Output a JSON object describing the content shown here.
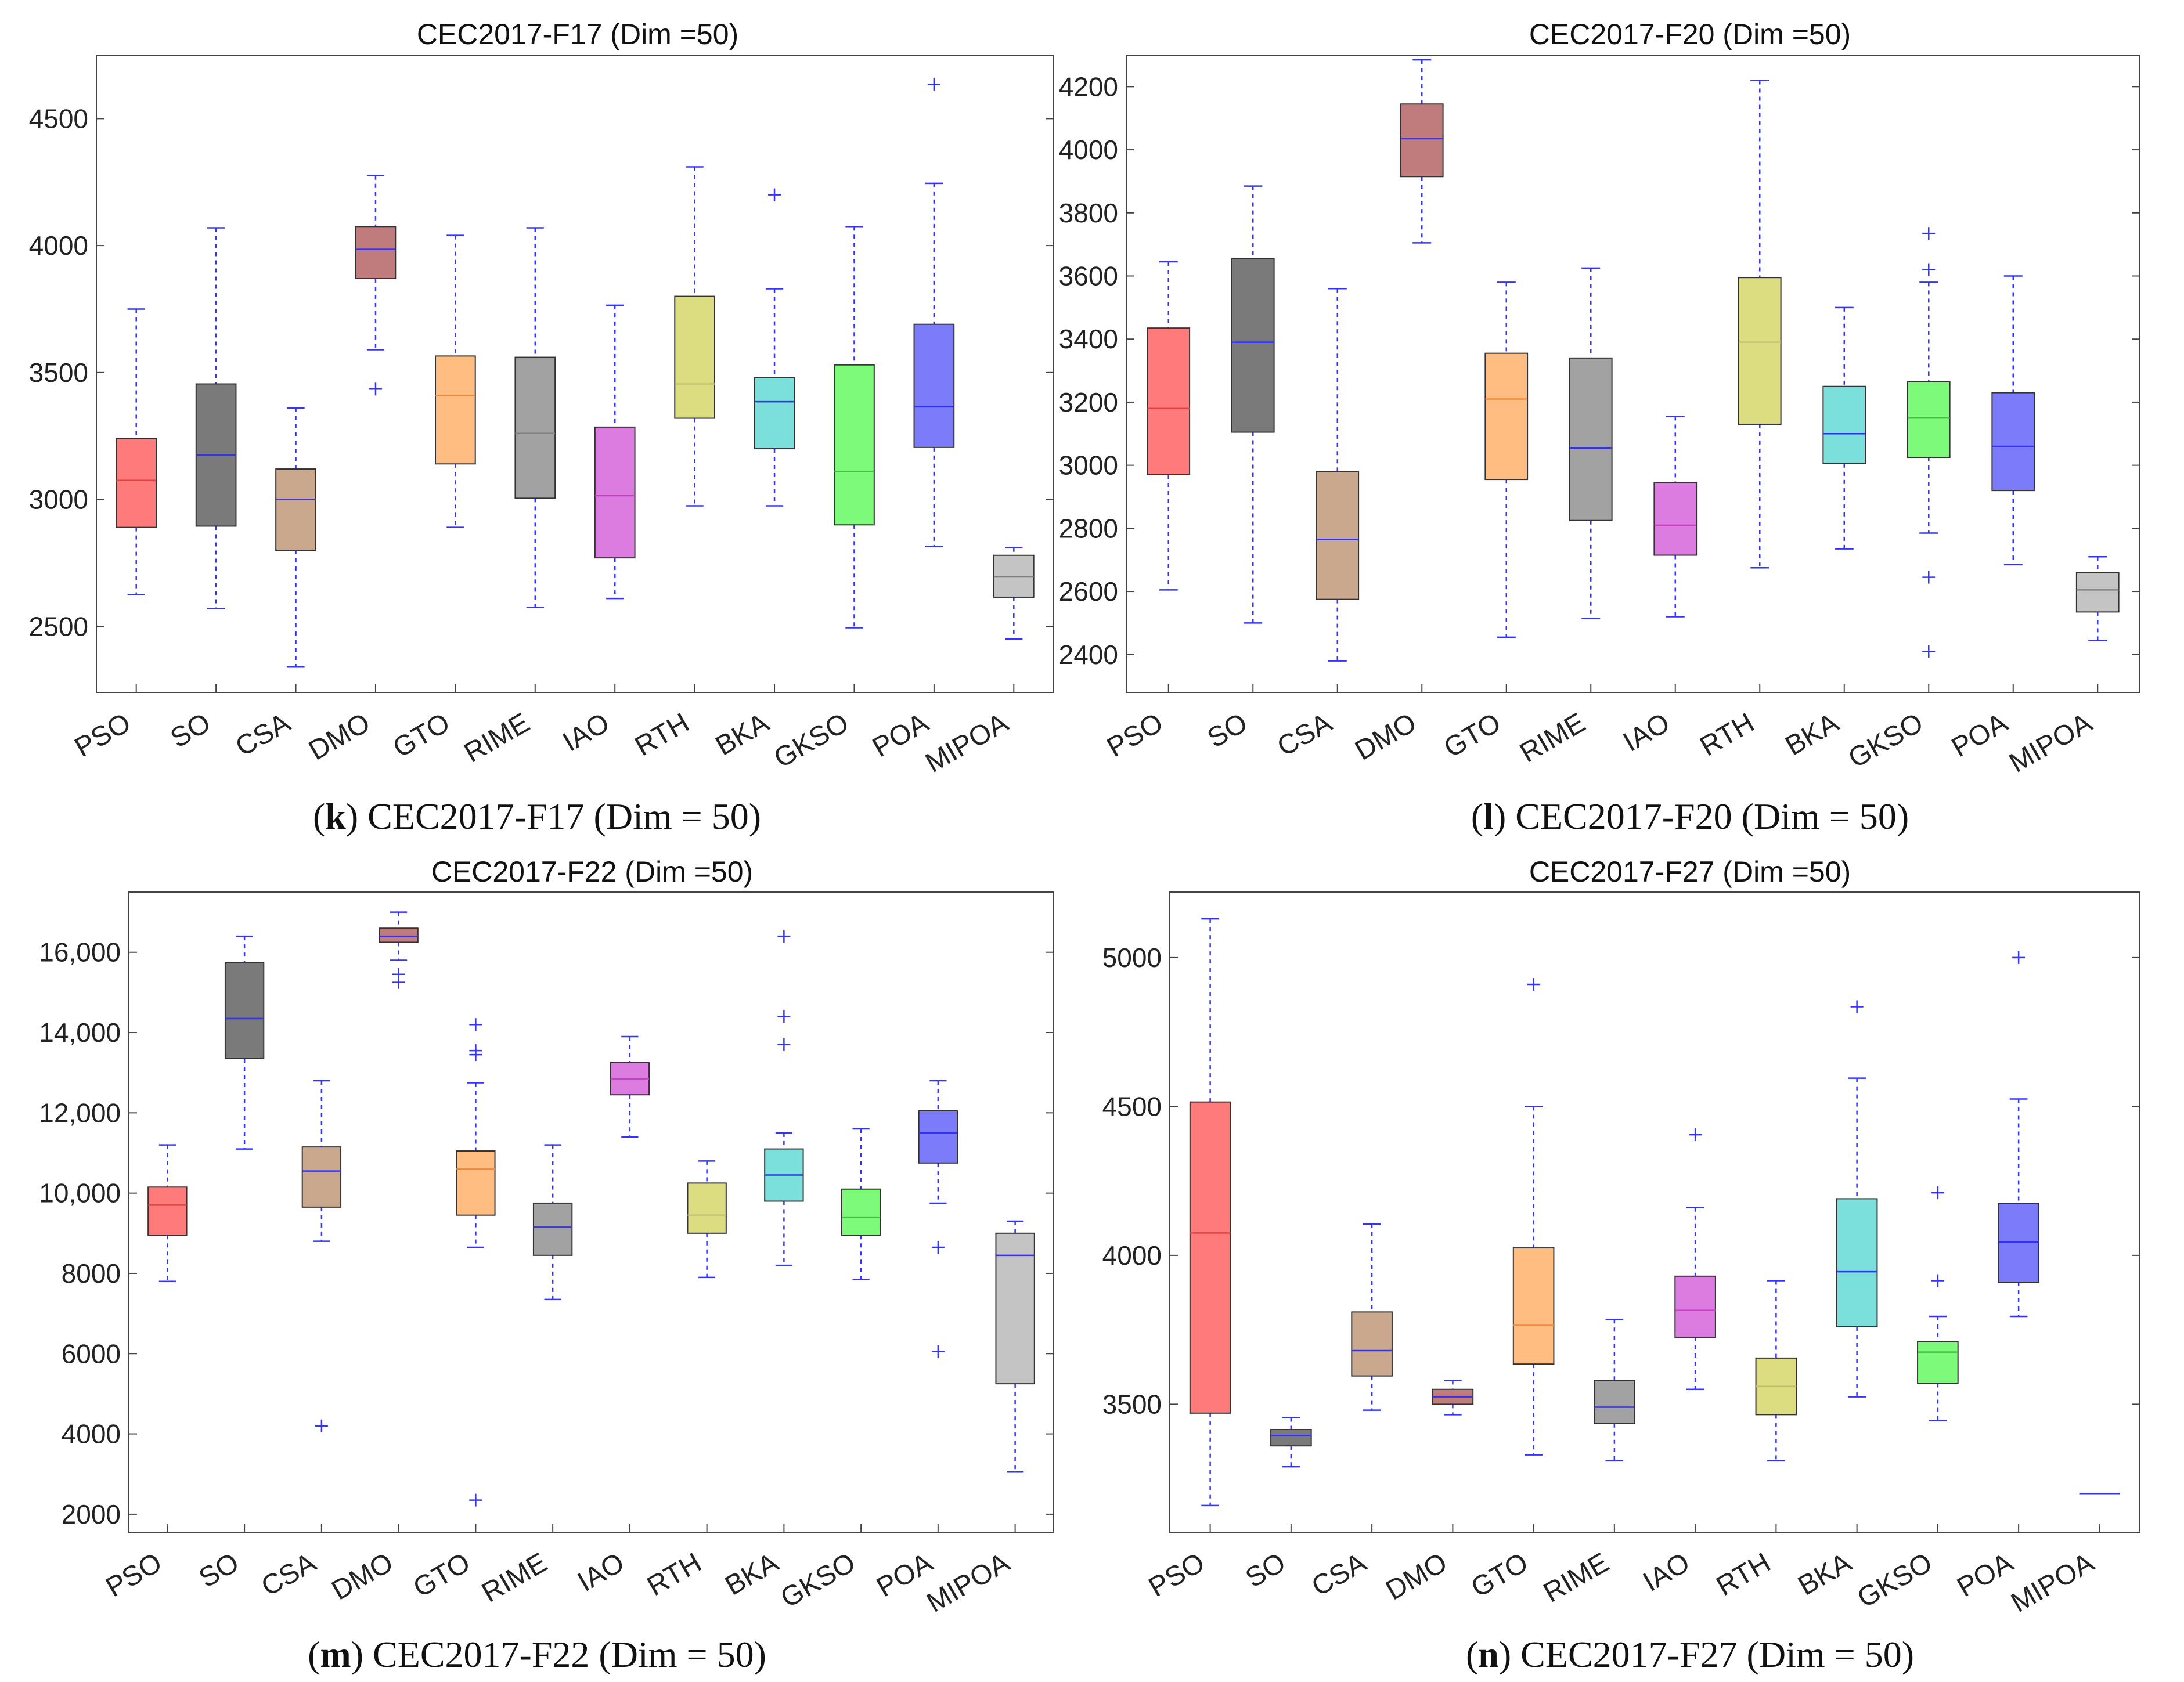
{
  "panels": [
    {
      "id": "k",
      "caption_tag": "k",
      "caption_text": " CEC2017-F17 (Dim = 50)"
    },
    {
      "id": "l",
      "caption_tag": "l",
      "caption_text": " CEC2017-F20 (Dim = 50)"
    },
    {
      "id": "m",
      "caption_tag": "m",
      "caption_text": " CEC2017-F22 (Dim = 50)"
    },
    {
      "id": "n",
      "caption_tag": "n",
      "caption_text": " CEC2017-F27 (Dim = 50)"
    }
  ],
  "chart_data": [
    {
      "type": "box",
      "title": "CEC2017-F17 (Dim =50)",
      "categories": [
        "PSO",
        "SO",
        "CSA",
        "DMO",
        "GTO",
        "RIME",
        "IAO",
        "RTH",
        "BKA",
        "GKSO",
        "POA",
        "MIPOA"
      ],
      "ylim": [
        2240,
        4750
      ],
      "yticks": [
        2500,
        3000,
        3500,
        4000,
        4500
      ],
      "ytick_labels": [
        "2500",
        "3000",
        "3500",
        "4000",
        "4500"
      ],
      "colors": [
        "#ff7b7b",
        "#7a7a7a",
        "#c9a88e",
        "#c07c7c",
        "#ffbd82",
        "#a2a2a2",
        "#dc7ce0",
        "#dcdc80",
        "#7be0dc",
        "#7dfa7a",
        "#7c7cfa",
        "#c4c4c4"
      ],
      "median_colors": [
        "#e04040",
        "#3030ff",
        "#3030ff",
        "#3030ff",
        "#f08a40",
        "#808080",
        "#c040c0",
        "#c0c070",
        "#3030ff",
        "#40c040",
        "#3030ff",
        "#808080"
      ],
      "boxes": [
        {
          "whislo": 2625,
          "q1": 2890,
          "med": 3075,
          "q3": 3240,
          "whishi": 3750,
          "outliers": []
        },
        {
          "whislo": 2570,
          "q1": 2895,
          "med": 3175,
          "q3": 3455,
          "whishi": 4070,
          "outliers": []
        },
        {
          "whislo": 2340,
          "q1": 2800,
          "med": 3000,
          "q3": 3120,
          "whishi": 3360,
          "outliers": []
        },
        {
          "whislo": 3590,
          "q1": 3870,
          "med": 3985,
          "q3": 4075,
          "whishi": 4275,
          "outliers": [
            3435
          ]
        },
        {
          "whislo": 2890,
          "q1": 3140,
          "med": 3410,
          "q3": 3565,
          "whishi": 4040,
          "outliers": []
        },
        {
          "whislo": 2575,
          "q1": 3005,
          "med": 3260,
          "q3": 3560,
          "whishi": 4070,
          "outliers": []
        },
        {
          "whislo": 2610,
          "q1": 2770,
          "med": 3015,
          "q3": 3285,
          "whishi": 3765,
          "outliers": []
        },
        {
          "whislo": 2975,
          "q1": 3320,
          "med": 3455,
          "q3": 3800,
          "whishi": 4310,
          "outliers": []
        },
        {
          "whislo": 2975,
          "q1": 3200,
          "med": 3385,
          "q3": 3480,
          "whishi": 3830,
          "outliers": [
            4200
          ]
        },
        {
          "whislo": 2495,
          "q1": 2900,
          "med": 3110,
          "q3": 3530,
          "whishi": 4075,
          "outliers": []
        },
        {
          "whislo": 2815,
          "q1": 3205,
          "med": 3365,
          "q3": 3690,
          "whishi": 4245,
          "outliers": [
            4635
          ]
        },
        {
          "whislo": 2450,
          "q1": 2615,
          "med": 2695,
          "q3": 2780,
          "whishi": 2810,
          "outliers": []
        }
      ]
    },
    {
      "type": "box",
      "title": "CEC2017-F20 (Dim =50)",
      "categories": [
        "PSO",
        "SO",
        "CSA",
        "DMO",
        "GTO",
        "RIME",
        "IAO",
        "RTH",
        "BKA",
        "GKSO",
        "POA",
        "MIPOA"
      ],
      "ylim": [
        2280,
        4300
      ],
      "yticks": [
        2400,
        2600,
        2800,
        3000,
        3200,
        3400,
        3600,
        3800,
        4000,
        4200
      ],
      "ytick_labels": [
        "2400",
        "2600",
        "2800",
        "3000",
        "3200",
        "3400",
        "3600",
        "3800",
        "4000",
        "4200"
      ],
      "colors": [
        "#ff7b7b",
        "#7a7a7a",
        "#c9a88e",
        "#c07c7c",
        "#ffbd82",
        "#a2a2a2",
        "#dc7ce0",
        "#dcdc80",
        "#7be0dc",
        "#7dfa7a",
        "#7c7cfa",
        "#c4c4c4"
      ],
      "median_colors": [
        "#e04040",
        "#3030ff",
        "#3030ff",
        "#3030ff",
        "#f08a40",
        "#3030ff",
        "#c040c0",
        "#c0c070",
        "#3030ff",
        "#40c040",
        "#3030ff",
        "#808080"
      ],
      "boxes": [
        {
          "whislo": 2605,
          "q1": 2970,
          "med": 3180,
          "q3": 3435,
          "whishi": 3645,
          "outliers": []
        },
        {
          "whislo": 2500,
          "q1": 3105,
          "med": 3390,
          "q3": 3655,
          "whishi": 3885,
          "outliers": []
        },
        {
          "whislo": 2380,
          "q1": 2575,
          "med": 2765,
          "q3": 2980,
          "whishi": 3560,
          "outliers": []
        },
        {
          "whislo": 3705,
          "q1": 3915,
          "med": 4035,
          "q3": 4145,
          "whishi": 4285,
          "outliers": []
        },
        {
          "whislo": 2455,
          "q1": 2955,
          "med": 3210,
          "q3": 3355,
          "whishi": 3580,
          "outliers": []
        },
        {
          "whislo": 2515,
          "q1": 2825,
          "med": 3055,
          "q3": 3340,
          "whishi": 3625,
          "outliers": []
        },
        {
          "whislo": 2520,
          "q1": 2715,
          "med": 2810,
          "q3": 2945,
          "whishi": 3155,
          "outliers": []
        },
        {
          "whislo": 2675,
          "q1": 3130,
          "med": 3390,
          "q3": 3595,
          "whishi": 4220,
          "outliers": []
        },
        {
          "whislo": 2735,
          "q1": 3005,
          "med": 3100,
          "q3": 3250,
          "whishi": 3500,
          "outliers": []
        },
        {
          "whislo": 2785,
          "q1": 3025,
          "med": 3150,
          "q3": 3265,
          "whishi": 3580,
          "outliers": [
            3735,
            3620,
            2645,
            2410
          ]
        },
        {
          "whislo": 2685,
          "q1": 2920,
          "med": 3060,
          "q3": 3230,
          "whishi": 3600,
          "outliers": []
        },
        {
          "whislo": 2445,
          "q1": 2535,
          "med": 2605,
          "q3": 2660,
          "whishi": 2710,
          "outliers": []
        }
      ]
    },
    {
      "type": "box",
      "title": "CEC2017-F22 (Dim =50)",
      "categories": [
        "PSO",
        "SO",
        "CSA",
        "DMO",
        "GTO",
        "RIME",
        "IAO",
        "RTH",
        "BKA",
        "GKSO",
        "POA",
        "MIPOA"
      ],
      "ylim": [
        1550,
        17500
      ],
      "yticks": [
        2000,
        4000,
        6000,
        8000,
        10000,
        12000,
        14000,
        16000
      ],
      "ytick_labels": [
        "2000",
        "4000",
        "6000",
        "8000",
        "10,000",
        "12,000",
        "14,000",
        "16,000"
      ],
      "colors": [
        "#ff7b7b",
        "#7a7a7a",
        "#c9a88e",
        "#c07c7c",
        "#ffbd82",
        "#a2a2a2",
        "#dc7ce0",
        "#dcdc80",
        "#7be0dc",
        "#7dfa7a",
        "#7c7cfa",
        "#c4c4c4"
      ],
      "median_colors": [
        "#e04040",
        "#3030ff",
        "#3030ff",
        "#3030ff",
        "#f08a40",
        "#3030ff",
        "#c040c0",
        "#c0c070",
        "#3030ff",
        "#40c040",
        "#3030ff",
        "#3030ff"
      ],
      "boxes": [
        {
          "whislo": 7800,
          "q1": 8950,
          "med": 9700,
          "q3": 10150,
          "whishi": 11200,
          "outliers": []
        },
        {
          "whislo": 11100,
          "q1": 13350,
          "med": 14350,
          "q3": 15750,
          "whishi": 16400,
          "outliers": []
        },
        {
          "whislo": 8800,
          "q1": 9650,
          "med": 10550,
          "q3": 11150,
          "whishi": 12800,
          "outliers": [
            4200
          ]
        },
        {
          "whislo": 15800,
          "q1": 16250,
          "med": 16400,
          "q3": 16600,
          "whishi": 17000,
          "outliers": [
            15250,
            15450
          ]
        },
        {
          "whislo": 8650,
          "q1": 9450,
          "med": 10600,
          "q3": 11050,
          "whishi": 12750,
          "outliers": [
            13450,
            13550,
            14200,
            2350
          ]
        },
        {
          "whislo": 7350,
          "q1": 8450,
          "med": 9150,
          "q3": 9750,
          "whishi": 11200,
          "outliers": []
        },
        {
          "whislo": 11400,
          "q1": 12450,
          "med": 12850,
          "q3": 13250,
          "whishi": 13900,
          "outliers": []
        },
        {
          "whislo": 7900,
          "q1": 9000,
          "med": 9450,
          "q3": 10250,
          "whishi": 10800,
          "outliers": []
        },
        {
          "whislo": 8200,
          "q1": 9800,
          "med": 10450,
          "q3": 11100,
          "whishi": 11500,
          "outliers": [
            13700,
            14400,
            16400
          ]
        },
        {
          "whislo": 7850,
          "q1": 8950,
          "med": 9400,
          "q3": 10100,
          "whishi": 11600,
          "outliers": []
        },
        {
          "whislo": 9750,
          "q1": 10750,
          "med": 11500,
          "q3": 12050,
          "whishi": 12800,
          "outliers": [
            8650,
            6050
          ]
        },
        {
          "whislo": 3050,
          "q1": 5250,
          "med": 8450,
          "q3": 9000,
          "whishi": 9300,
          "outliers": []
        }
      ]
    },
    {
      "type": "box",
      "title": "CEC2017-F27 (Dim =50)",
      "categories": [
        "PSO",
        "SO",
        "CSA",
        "DMO",
        "GTO",
        "RIME",
        "IAO",
        "RTH",
        "BKA",
        "GKSO",
        "POA",
        "MIPOA"
      ],
      "ylim": [
        3070,
        5220
      ],
      "yticks": [
        3500,
        4000,
        4500,
        5000
      ],
      "ytick_labels": [
        "3500",
        "4000",
        "4500",
        "5000"
      ],
      "colors": [
        "#ff7b7b",
        "#7a7a7a",
        "#c9a88e",
        "#c07c7c",
        "#ffbd82",
        "#a2a2a2",
        "#dc7ce0",
        "#dcdc80",
        "#7be0dc",
        "#7dfa7a",
        "#7c7cfa",
        "#c4c4c4"
      ],
      "median_colors": [
        "#e04040",
        "#3030ff",
        "#3030ff",
        "#3030ff",
        "#f08a40",
        "#3030ff",
        "#c040c0",
        "#c0c070",
        "#3030ff",
        "#40c040",
        "#3030ff",
        "#3030ff"
      ],
      "boxes": [
        {
          "whislo": 3160,
          "q1": 3470,
          "med": 4075,
          "q3": 4515,
          "whishi": 5130,
          "outliers": []
        },
        {
          "whislo": 3290,
          "q1": 3360,
          "med": 3395,
          "q3": 3415,
          "whishi": 3455,
          "outliers": []
        },
        {
          "whislo": 3480,
          "q1": 3595,
          "med": 3680,
          "q3": 3810,
          "whishi": 4105,
          "outliers": []
        },
        {
          "whislo": 3465,
          "q1": 3500,
          "med": 3525,
          "q3": 3550,
          "whishi": 3580,
          "outliers": []
        },
        {
          "whislo": 3330,
          "q1": 3635,
          "med": 3765,
          "q3": 4025,
          "whishi": 4500,
          "outliers": [
            4910
          ]
        },
        {
          "whislo": 3310,
          "q1": 3435,
          "med": 3490,
          "q3": 3580,
          "whishi": 3785,
          "outliers": []
        },
        {
          "whislo": 3550,
          "q1": 3725,
          "med": 3815,
          "q3": 3930,
          "whishi": 4160,
          "outliers": [
            4405
          ]
        },
        {
          "whislo": 3310,
          "q1": 3465,
          "med": 3560,
          "q3": 3655,
          "whishi": 3915,
          "outliers": []
        },
        {
          "whislo": 3525,
          "q1": 3760,
          "med": 3945,
          "q3": 4190,
          "whishi": 4595,
          "outliers": [
            4835
          ]
        },
        {
          "whislo": 3445,
          "q1": 3570,
          "med": 3675,
          "q3": 3710,
          "whishi": 3795,
          "outliers": [
            3915,
            4210
          ]
        },
        {
          "whislo": 3795,
          "q1": 3910,
          "med": 4045,
          "q3": 4175,
          "whishi": 4525,
          "outliers": [
            5000
          ]
        },
        {
          "whislo": 3200,
          "q1": 3200,
          "med": 3200,
          "q3": 3200,
          "whishi": 3200,
          "outliers": []
        }
      ]
    }
  ]
}
